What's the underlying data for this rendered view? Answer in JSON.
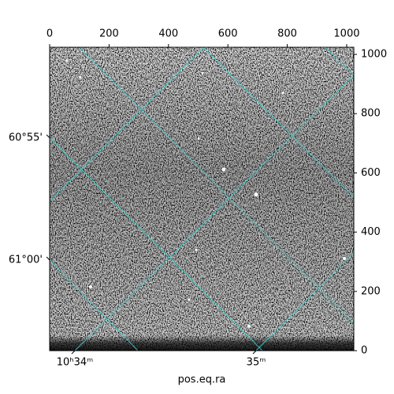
{
  "chart_data": {
    "type": "image",
    "xlabel": "pos.eq.ra",
    "xlim": [
      0,
      1024
    ],
    "xticks": [
      0,
      200,
      400,
      600,
      800,
      1000
    ],
    "ylim": [
      0,
      1024
    ],
    "yticks": [
      0,
      200,
      400,
      600,
      800,
      1000
    ],
    "ra_ticks": [
      {
        "value": 34,
        "label": "10ʰ34ᵐ"
      },
      {
        "value": 35,
        "label": "35ᵐ"
      }
    ],
    "dec_ticks": [
      {
        "value": 55,
        "label": "60°55'"
      },
      {
        "value": 60,
        "label": "61°00'"
      }
    ],
    "grid": true,
    "grid_color": "#40d0d0",
    "cmap": "gray"
  }
}
